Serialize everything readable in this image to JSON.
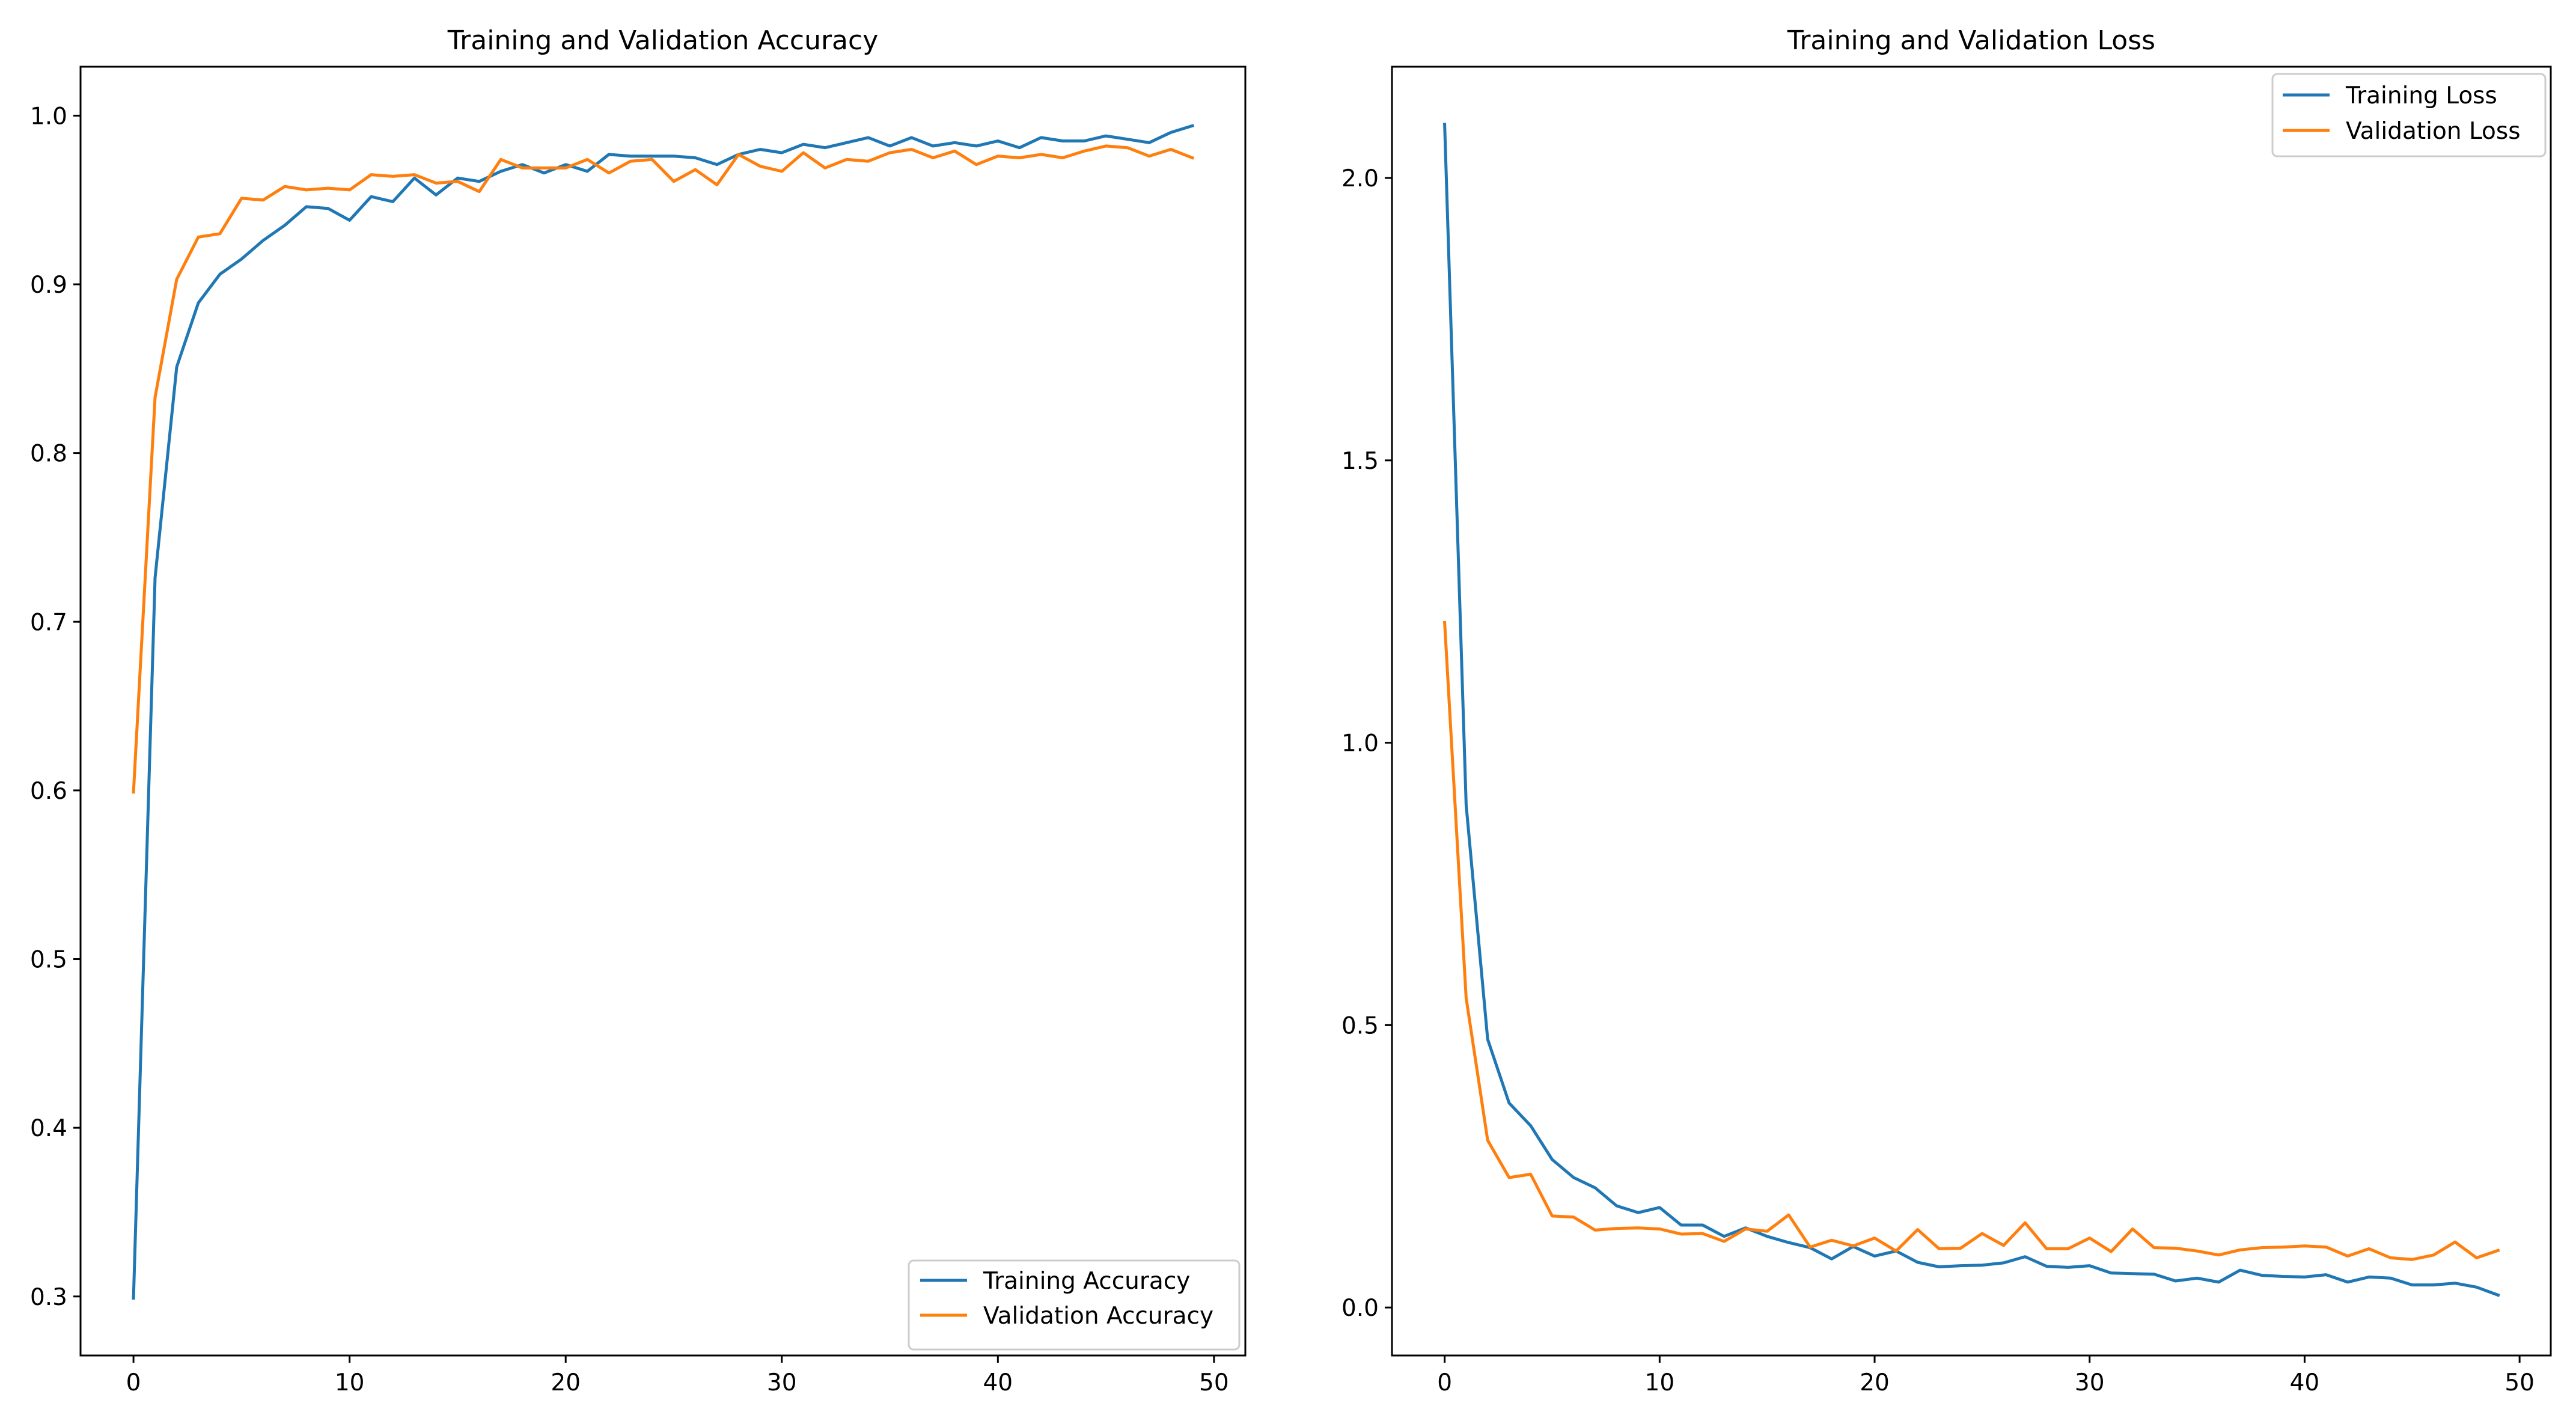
{
  "chart_data": [
    {
      "type": "line",
      "title": "Training and Validation Accuracy",
      "xlabel": "",
      "ylabel": "",
      "xlim": [
        -2.45,
        51.45
      ],
      "ylim": [
        0.265,
        1.029
      ],
      "xticks": [
        0,
        10,
        20,
        30,
        40,
        50
      ],
      "yticks": [
        0.3,
        0.4,
        0.5,
        0.6,
        0.7,
        0.8,
        0.9,
        1.0
      ],
      "xtick_labels": [
        "0",
        "10",
        "20",
        "30",
        "40",
        "50"
      ],
      "ytick_labels": [
        "0.3",
        "0.4",
        "0.5",
        "0.6",
        "0.7",
        "0.8",
        "0.9",
        "1.0"
      ],
      "legend_position": "lower right",
      "x": [
        0,
        1,
        2,
        3,
        4,
        5,
        6,
        7,
        8,
        9,
        10,
        11,
        12,
        13,
        14,
        15,
        16,
        17,
        18,
        19,
        20,
        21,
        22,
        23,
        24,
        25,
        26,
        27,
        28,
        29,
        30,
        31,
        32,
        33,
        34,
        35,
        36,
        37,
        38,
        39,
        40,
        41,
        42,
        43,
        44,
        45,
        46,
        47,
        48,
        49
      ],
      "series": [
        {
          "name": "Training Accuracy",
          "color": "#1f77b4",
          "values": [
            0.299,
            0.726,
            0.851,
            0.889,
            0.906,
            0.915,
            0.926,
            0.935,
            0.946,
            0.945,
            0.938,
            0.952,
            0.949,
            0.963,
            0.953,
            0.963,
            0.961,
            0.967,
            0.971,
            0.966,
            0.971,
            0.967,
            0.977,
            0.976,
            0.976,
            0.976,
            0.975,
            0.971,
            0.977,
            0.98,
            0.978,
            0.983,
            0.981,
            0.984,
            0.987,
            0.982,
            0.987,
            0.982,
            0.984,
            0.982,
            0.985,
            0.981,
            0.987,
            0.985,
            0.985,
            0.988,
            0.986,
            0.984,
            0.99,
            0.994
          ]
        },
        {
          "name": "Validation Accuracy",
          "color": "#ff7f0e",
          "values": [
            0.599,
            0.833,
            0.903,
            0.928,
            0.93,
            0.951,
            0.95,
            0.958,
            0.956,
            0.957,
            0.956,
            0.965,
            0.964,
            0.965,
            0.96,
            0.961,
            0.955,
            0.974,
            0.969,
            0.969,
            0.969,
            0.974,
            0.966,
            0.973,
            0.974,
            0.961,
            0.968,
            0.959,
            0.977,
            0.97,
            0.967,
            0.978,
            0.969,
            0.974,
            0.973,
            0.978,
            0.98,
            0.975,
            0.979,
            0.971,
            0.976,
            0.975,
            0.977,
            0.975,
            0.979,
            0.982,
            0.981,
            0.976,
            0.98,
            0.975
          ]
        }
      ]
    },
    {
      "type": "line",
      "title": "Training and Validation Loss",
      "xlabel": "",
      "ylabel": "",
      "xlim": [
        -2.45,
        51.45
      ],
      "ylim": [
        -0.085,
        2.197
      ],
      "xticks": [
        0,
        10,
        20,
        30,
        40,
        50
      ],
      "yticks": [
        0.0,
        0.5,
        1.0,
        1.5,
        2.0
      ],
      "xtick_labels": [
        "0",
        "10",
        "20",
        "30",
        "40",
        "50"
      ],
      "ytick_labels": [
        "0.0",
        "0.5",
        "1.0",
        "1.5",
        "2.0"
      ],
      "legend_position": "upper right",
      "x": [
        0,
        1,
        2,
        3,
        4,
        5,
        6,
        7,
        8,
        9,
        10,
        11,
        12,
        13,
        14,
        15,
        16,
        17,
        18,
        19,
        20,
        21,
        22,
        23,
        24,
        25,
        26,
        27,
        28,
        29,
        30,
        31,
        32,
        33,
        34,
        35,
        36,
        37,
        38,
        39,
        40,
        41,
        42,
        43,
        44,
        45,
        46,
        47,
        48,
        49
      ],
      "series": [
        {
          "name": "Training Loss",
          "color": "#1f77b4",
          "values": [
            2.095,
            0.89,
            0.475,
            0.362,
            0.322,
            0.262,
            0.23,
            0.212,
            0.18,
            0.168,
            0.177,
            0.146,
            0.146,
            0.126,
            0.141,
            0.126,
            0.115,
            0.106,
            0.086,
            0.108,
            0.091,
            0.1,
            0.08,
            0.072,
            0.074,
            0.075,
            0.079,
            0.09,
            0.073,
            0.071,
            0.074,
            0.061,
            0.06,
            0.059,
            0.047,
            0.052,
            0.045,
            0.066,
            0.057,
            0.055,
            0.054,
            0.058,
            0.045,
            0.054,
            0.052,
            0.04,
            0.04,
            0.043,
            0.036,
            0.022
          ]
        },
        {
          "name": "Validation Loss",
          "color": "#ff7f0e",
          "values": [
            1.213,
            0.548,
            0.296,
            0.23,
            0.236,
            0.162,
            0.16,
            0.137,
            0.14,
            0.141,
            0.139,
            0.13,
            0.131,
            0.117,
            0.139,
            0.135,
            0.164,
            0.107,
            0.119,
            0.109,
            0.123,
            0.1,
            0.138,
            0.104,
            0.105,
            0.131,
            0.11,
            0.15,
            0.104,
            0.104,
            0.123,
            0.099,
            0.139,
            0.106,
            0.105,
            0.1,
            0.093,
            0.102,
            0.106,
            0.107,
            0.109,
            0.107,
            0.091,
            0.104,
            0.088,
            0.085,
            0.093,
            0.116,
            0.088,
            0.101
          ]
        }
      ]
    }
  ]
}
